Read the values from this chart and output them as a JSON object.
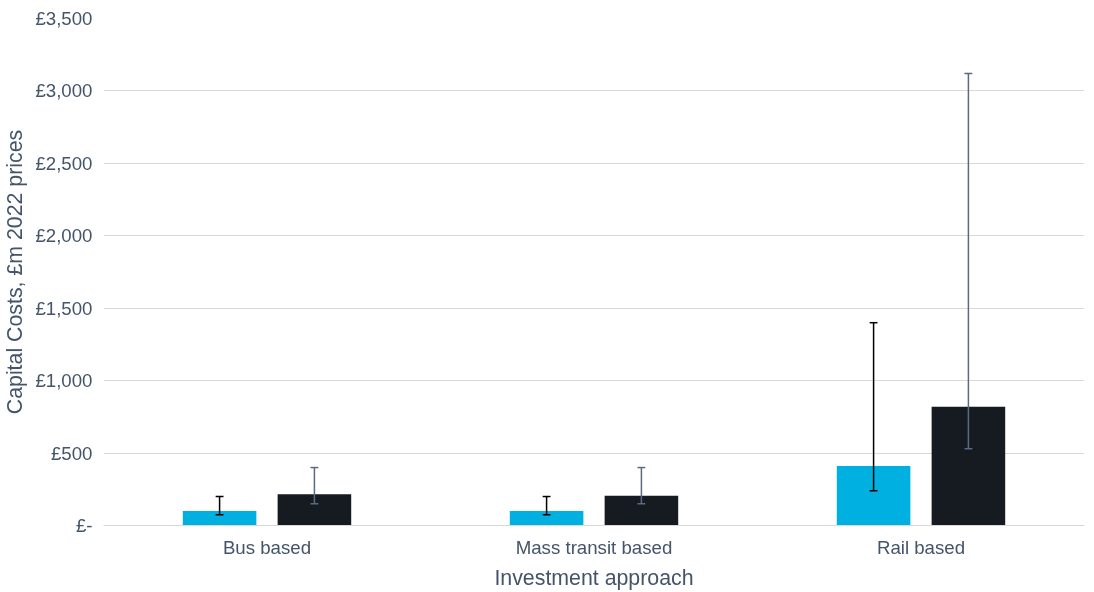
{
  "chart_data": {
    "type": "bar",
    "xlabel": "Investment approach",
    "ylabel": "Capital Costs, £m 2022 prices",
    "categories": [
      "Bus based",
      "Mass transit based",
      "Rail based"
    ],
    "series": [
      {
        "color": "#00b0e0",
        "values": [
          100,
          100,
          410
        ],
        "errors": [
          [
            75,
            200
          ],
          [
            75,
            200
          ],
          [
            240,
            1400
          ]
        ]
      },
      {
        "color": "#161b22",
        "values": [
          215,
          205,
          820
        ],
        "errors": [
          [
            150,
            400
          ],
          [
            150,
            400
          ],
          [
            530,
            3120
          ]
        ]
      }
    ],
    "ylim": [
      0,
      3500
    ],
    "yticks": [
      {
        "value": 0,
        "label": "£-"
      },
      {
        "value": 500,
        "label": "£500"
      },
      {
        "value": 1000,
        "label": "£1,000"
      },
      {
        "value": 1500,
        "label": "£1,500"
      },
      {
        "value": 2000,
        "label": "£2,000"
      },
      {
        "value": 2500,
        "label": "£2,500"
      },
      {
        "value": 3000,
        "label": "£3,000"
      },
      {
        "value": 3500,
        "label": "£3,500"
      }
    ],
    "grid": "y"
  }
}
